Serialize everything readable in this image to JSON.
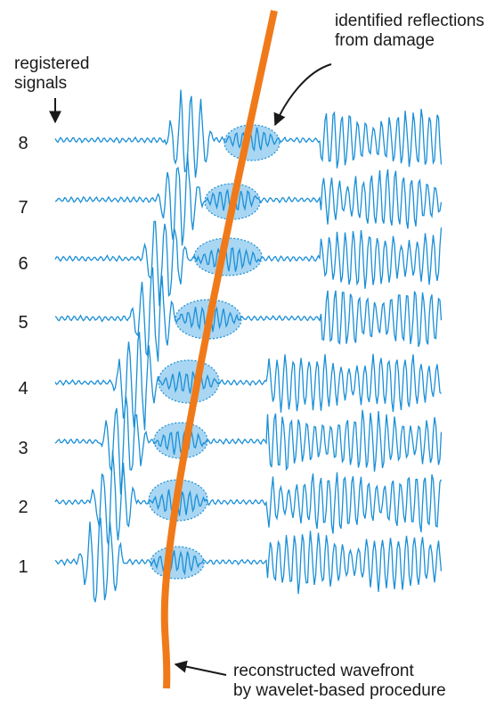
{
  "labels": {
    "registered_line1": "registered",
    "registered_line2": "signals",
    "reflections_line1": "identified reflections",
    "reflections_line2": "from damage",
    "wavefront_line1": "reconstructed wavefront",
    "wavefront_line2": "by wavelet-based procedure"
  },
  "signal_numbers": [
    "8",
    "7",
    "6",
    "5",
    "4",
    "3",
    "2",
    "1"
  ],
  "colors": {
    "signal": "#1a8fd6",
    "ellipse_fill": "#a9d6f2",
    "ellipse_stroke": "#1a8fd6",
    "wavefront": "#f07a1a",
    "text": "#1a1a1a"
  }
}
